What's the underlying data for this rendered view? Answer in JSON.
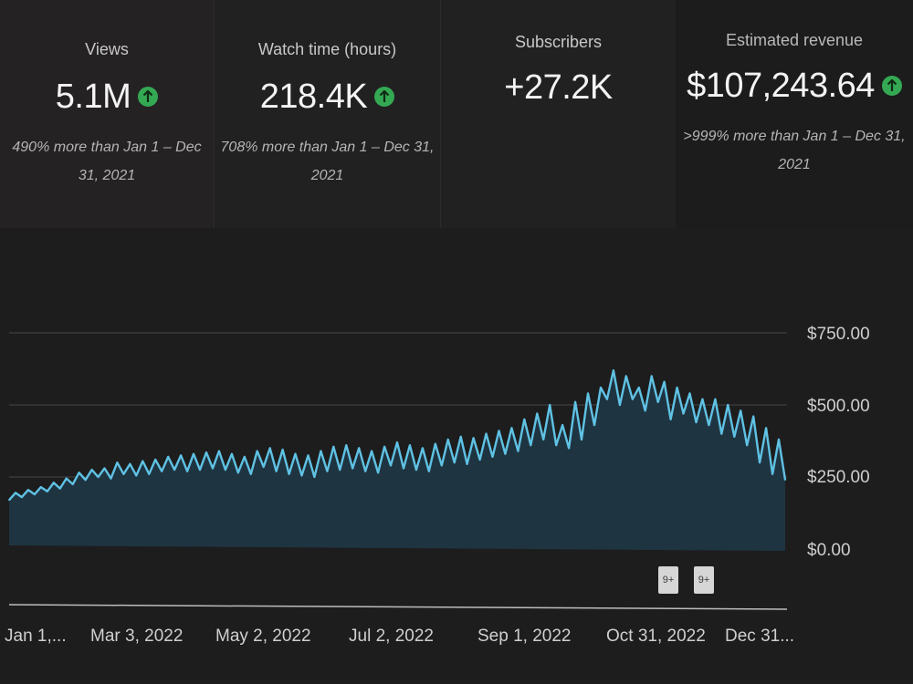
{
  "metrics": [
    {
      "label": "Views",
      "value": "5.1M",
      "trend_icon": "arrow-up-icon",
      "compare": "490% more than Jan 1 – Dec 31, 2021"
    },
    {
      "label": "Watch time (hours)",
      "value": "218.4K",
      "trend_icon": "arrow-up-icon",
      "compare": "708% more than Jan 1 – Dec 31, 2021"
    },
    {
      "label": "Subscribers",
      "value": "+27.2K",
      "trend_icon": null,
      "compare": ""
    },
    {
      "label": "Estimated revenue",
      "value": "$107,243.64",
      "trend_icon": "arrow-up-icon",
      "compare": ">999% more than Jan 1 – Dec 31, 2021"
    }
  ],
  "colors": {
    "accent": "#34a853",
    "line": "#5fc2e4",
    "fill": "#1f3441"
  },
  "chart_data": {
    "type": "area",
    "ylim": [
      0,
      750
    ],
    "y_ticks": [
      "$750.00",
      "$500.00",
      "$250.00",
      "$0.00"
    ],
    "x_ticks": [
      "Jan 1,...",
      "Mar 3, 2022",
      "May 2, 2022",
      "Jul 2, 2022",
      "Sep 1, 2022",
      "Oct 31, 2022",
      "Dec 31..."
    ],
    "x_range": [
      "2022-01-01",
      "2022-12-31"
    ],
    "annotations": [
      {
        "label": "9+"
      },
      {
        "label": "9+"
      }
    ],
    "series": [
      {
        "values": [
          170,
          195,
          180,
          205,
          190,
          215,
          200,
          230,
          210,
          245,
          225,
          265,
          240,
          275,
          250,
          280,
          245,
          300,
          260,
          295,
          255,
          305,
          260,
          310,
          270,
          320,
          275,
          325,
          270,
          330,
          275,
          335,
          280,
          340,
          275,
          330,
          265,
          320,
          260,
          340,
          285,
          350,
          270,
          345,
          260,
          330,
          255,
          325,
          250,
          340,
          270,
          355,
          275,
          360,
          280,
          350,
          270,
          340,
          265,
          355,
          290,
          370,
          280,
          360,
          275,
          350,
          270,
          365,
          290,
          380,
          300,
          390,
          295,
          385,
          310,
          400,
          320,
          410,
          330,
          420,
          340,
          450,
          360,
          470,
          380,
          500,
          360,
          430,
          350,
          510,
          380,
          540,
          430,
          560,
          520,
          620,
          500,
          600,
          520,
          560,
          480,
          600,
          510,
          580,
          450,
          560,
          470,
          540,
          440,
          520,
          430,
          520,
          400,
          500,
          390,
          480,
          360,
          460,
          300,
          420,
          260,
          380,
          240
        ]
      }
    ]
  }
}
